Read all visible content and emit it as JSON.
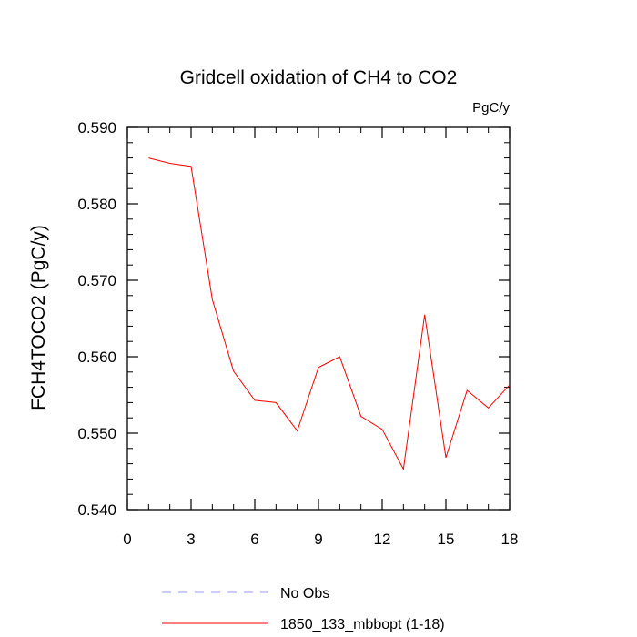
{
  "chart_data": {
    "type": "line",
    "title": "Gridcell oxidation of CH4 to CO2",
    "units": "PgC/y",
    "xlabel": "",
    "ylabel": "FCH4TOCO2  (PgC/y)",
    "xlim": [
      0,
      18
    ],
    "ylim": [
      0.54,
      0.59
    ],
    "xticks": [
      0,
      3,
      6,
      9,
      12,
      15,
      18
    ],
    "xtick_labels": [
      "0",
      "3",
      "6",
      "9",
      "12",
      "15",
      "18"
    ],
    "yticks": [
      0.54,
      0.55,
      0.56,
      0.57,
      0.58,
      0.59
    ],
    "ytick_labels": [
      "0.540",
      "0.550",
      "0.560",
      "0.570",
      "0.580",
      "0.590"
    ],
    "series": [
      {
        "name": "1850_133_mbbopt (1-18)",
        "color": "#ff0000",
        "x": [
          1,
          2,
          3,
          4,
          5,
          6,
          7,
          8,
          9,
          10,
          11,
          12,
          13,
          14,
          15,
          16,
          17,
          18
        ],
        "values": [
          0.586,
          0.5853,
          0.5849,
          0.5675,
          0.5581,
          0.5543,
          0.554,
          0.5503,
          0.5586,
          0.56,
          0.5522,
          0.5505,
          0.5453,
          0.5655,
          0.5468,
          0.5556,
          0.5533,
          0.5563
        ]
      }
    ],
    "legend": [
      {
        "label": "No Obs",
        "color": "#9999ff",
        "style": "dashed"
      },
      {
        "label": "1850_133_mbbopt (1-18)",
        "color": "#ff0000",
        "style": "solid"
      }
    ],
    "legend_placement": "bottom"
  }
}
